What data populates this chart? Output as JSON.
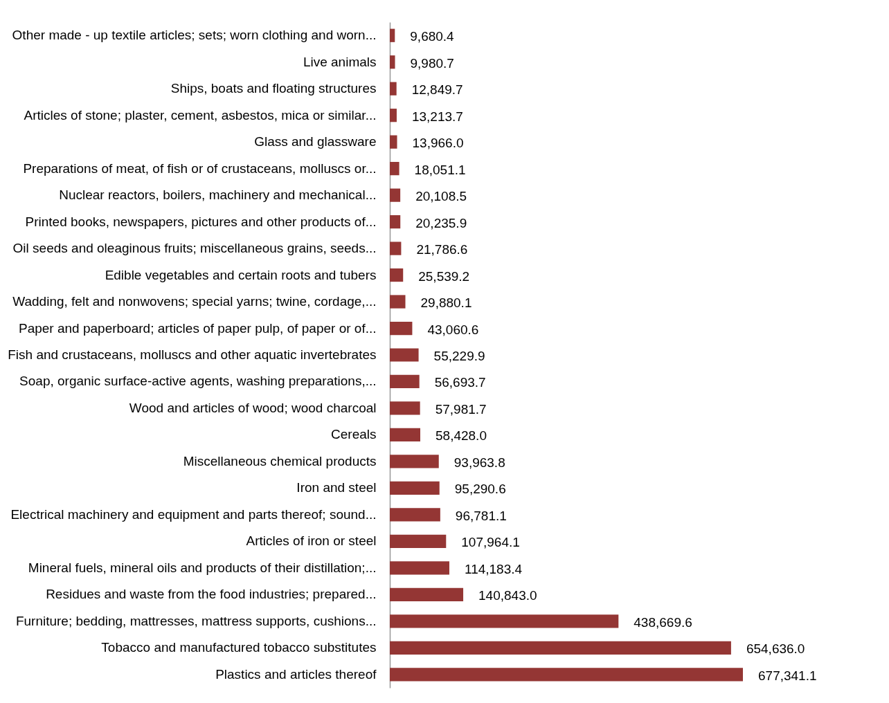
{
  "chart_data": {
    "type": "bar",
    "orientation": "horizontal",
    "tick_labels": "y",
    "color": "#943634",
    "categories": [
      "Other made - up textile articles; sets; worn clothing and worn...",
      "Live animals",
      "Ships, boats and floating structures",
      "Articles of stone; plaster, cement, asbestos, mica or similar...",
      "Glass and glassware",
      "Preparations of meat, of fish or of crustaceans, molluscs or...",
      "Nuclear reactors, boilers, machinery and mechanical...",
      "Printed books, newspapers, pictures and other products of...",
      "Oil seeds and oleaginous fruits; miscellaneous grains, seeds...",
      "Edible vegetables and certain roots and tubers",
      "Wadding, felt and nonwovens; special yarns; twine, cordage,...",
      "Paper and paperboard; articles of paper pulp, of paper or of...",
      "Fish and crustaceans, molluscs and other aquatic invertebrates",
      "Soap, organic surface-active agents, washing preparations,...",
      "Wood and articles of wood; wood charcoal",
      "Cereals",
      "Miscellaneous chemical products",
      "Iron and steel",
      "Electrical machinery and equipment and parts thereof; sound...",
      "Articles of iron or steel",
      "Mineral fuels, mineral oils and products of their distillation;...",
      "Residues and waste from the food industries; prepared...",
      "Furniture; bedding, mattresses, mattress supports, cushions...",
      "Tobacco and manufactured tobacco substitutes",
      "Plastics and articles thereof"
    ],
    "values": [
      9680.4,
      9980.7,
      12849.7,
      13213.7,
      13966.0,
      18051.1,
      20108.5,
      20235.9,
      21786.6,
      25539.2,
      29880.1,
      43060.6,
      55229.9,
      56693.7,
      57981.7,
      58428.0,
      93963.8,
      95290.6,
      96781.1,
      107964.1,
      114183.4,
      140843.0,
      438669.6,
      654636.0,
      677341.1
    ],
    "value_labels": [
      "9,680.4",
      "9,980.7",
      "12,849.7",
      "13,213.7",
      "13,966.0",
      "18,051.1",
      "20,108.5",
      "20,235.9",
      "21,786.6",
      "25,539.2",
      "29,880.1",
      "43,060.6",
      "55,229.9",
      "56,693.7",
      "57,981.7",
      "58,428.0",
      "93,963.8",
      "95,290.6",
      "96,781.1",
      "107,964.1",
      "114,183.4",
      "140,843.0",
      "438,669.6",
      "654,636.0",
      "677,341.1"
    ]
  }
}
